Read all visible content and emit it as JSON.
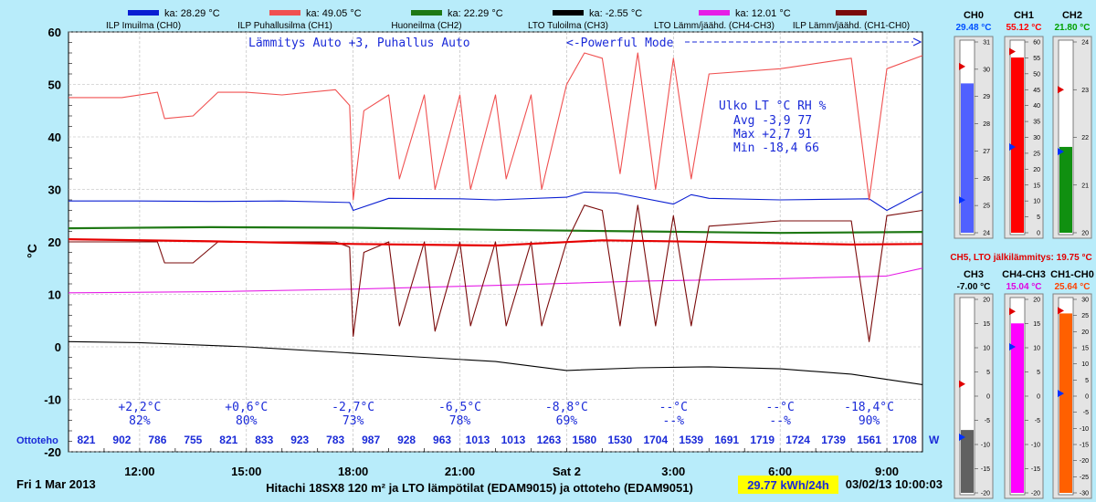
{
  "chart_data": {
    "type": "line",
    "ylabel": "°C",
    "ylim": [
      -20,
      60
    ],
    "yticks": [
      -20,
      -10,
      0,
      10,
      20,
      30,
      40,
      50,
      60
    ],
    "xlim_hours": [
      10.0,
      34.0
    ],
    "x_ticks": [
      {
        "h": 12,
        "label": "12:00"
      },
      {
        "h": 15,
        "label": "15:00"
      },
      {
        "h": 18,
        "label": "18:00"
      },
      {
        "h": 21,
        "label": "21:00"
      },
      {
        "h": 24,
        "label": "Sat 2"
      },
      {
        "h": 27,
        "label": "3:00"
      },
      {
        "h": 30,
        "label": "6:00"
      },
      {
        "h": 33,
        "label": "9:00"
      }
    ],
    "legend": [
      {
        "avg": "ka: 28.29 °C",
        "name": "ILP Imuilma (CH0)",
        "color": "#0a1ed2"
      },
      {
        "avg": "ka: 49.05 °C",
        "name": "ILP Puhallusilma (CH1)",
        "color": "#f05050"
      },
      {
        "avg": "ka: 22.29 °C",
        "name": "Huoneilma (CH2)",
        "color": "#1e7814"
      },
      {
        "avg": "ka: -2.55 °C",
        "name": "LTO Tuloilma (CH3)",
        "color": "#000000"
      },
      {
        "avg": "ka: 12.01 °C",
        "name": "LTO Lämm/jäähd. (CH4-CH3)",
        "color": "#e61ee6"
      },
      {
        "avg": "",
        "name": "ILP Lämm/jäähd. (CH1-CH0)",
        "color": "#7a0a0a"
      }
    ],
    "series": [
      {
        "name": "ILP Imuilma (CH0)",
        "color": "#0a1ed2",
        "x": [
          10,
          12,
          14,
          16,
          17.9,
          18,
          19,
          21,
          22,
          24,
          24.5,
          25.4,
          27,
          27.5,
          28,
          30,
          32.5,
          33,
          34
        ],
        "y": [
          27.8,
          27.8,
          27.7,
          27.8,
          27.5,
          26,
          28.3,
          28.2,
          28,
          28.5,
          29.5,
          29.3,
          27.2,
          29,
          28.3,
          28,
          28.2,
          26,
          29.6
        ]
      },
      {
        "name": "ILP Puhallusilma (CH1)",
        "color": "#f05050",
        "x": [
          10,
          11.5,
          12.5,
          12.7,
          13.5,
          14.2,
          15,
          16,
          17.5,
          17.9,
          18,
          18.3,
          19,
          19.3,
          20,
          20.3,
          21,
          21.3,
          22,
          22.3,
          23,
          23.3,
          24,
          24.5,
          25,
          25.5,
          26,
          26.5,
          27,
          27.5,
          28,
          30,
          32,
          32.5,
          33,
          34
        ],
        "y": [
          47.5,
          47.5,
          48.5,
          43.5,
          44,
          48.5,
          48.5,
          48,
          49,
          46,
          28,
          45,
          48,
          32,
          48,
          30,
          48,
          30,
          48,
          32,
          48,
          30,
          50,
          56,
          55,
          33,
          56,
          30,
          55,
          32,
          52,
          53,
          55,
          28,
          53,
          55.5
        ]
      },
      {
        "name": "Huoneilma (CH2)",
        "color": "#1e7814",
        "x": [
          10,
          14,
          18,
          22,
          26,
          30,
          34
        ],
        "y": [
          22.6,
          22.8,
          22.7,
          22.3,
          22,
          21.7,
          21.9
        ]
      },
      {
        "name": "LTO Tuloilma (CH3)",
        "color": "#000000",
        "x": [
          10,
          12,
          15,
          18,
          20,
          22,
          24,
          26,
          28,
          30,
          32,
          34
        ],
        "y": [
          1,
          0.8,
          0,
          -1.2,
          -2,
          -2.8,
          -4.5,
          -4,
          -3.8,
          -4.2,
          -5.2,
          -7.2
        ]
      },
      {
        "name": "LTO Lämm/jäähd. (CH4-CH3)",
        "color": "#e61ee6",
        "x": [
          10,
          14,
          18,
          22,
          26,
          30,
          33,
          34
        ],
        "y": [
          10.3,
          10.5,
          11,
          11.7,
          12.5,
          13,
          13.5,
          15
        ]
      },
      {
        "name": "ILP Lämm/jäähd. (CH1-CH0)",
        "color": "#7a0a0a",
        "x": [
          10,
          11.5,
          12.5,
          12.7,
          13.5,
          14.2,
          15,
          16,
          17.5,
          17.9,
          18,
          18.3,
          19,
          19.3,
          20,
          20.3,
          21,
          21.3,
          22,
          22.3,
          23,
          23.3,
          24,
          24.5,
          25,
          25.5,
          26,
          26.5,
          27,
          27.5,
          28,
          30,
          32,
          32.5,
          33,
          34
        ],
        "y": [
          20,
          20,
          20,
          16,
          16,
          20,
          20,
          20,
          20,
          19,
          2,
          18,
          20,
          4,
          20,
          3,
          20,
          4,
          20,
          4,
          20,
          4,
          20,
          27,
          26,
          4,
          27,
          4,
          25,
          4,
          23,
          24,
          24,
          1,
          25,
          26
        ]
      },
      {
        "name": "CH5, LTO jälkilämmitys",
        "color": "#e60000",
        "x": [
          10,
          14,
          18,
          22,
          25,
          28,
          32,
          34
        ],
        "y": [
          20.5,
          20.1,
          19.6,
          19.3,
          20.3,
          20,
          19.5,
          19.6
        ]
      }
    ],
    "annotations": {
      "mode_top": "Lämmitys Auto +3, Puhallus Auto",
      "powerful_mode": "<-Powerful Mode",
      "outdoor_header": "Ulko LT °C RH %",
      "outdoor_avg": "Avg  -3,9 77",
      "outdoor_max": "Max  +2,7 91",
      "outdoor_min": "Min -18,4 66"
    },
    "outdoor_temps": [
      {
        "h": 12,
        "t": "+2,2°C",
        "rh": "82%"
      },
      {
        "h": 15,
        "t": "+0,6°C",
        "rh": "80%"
      },
      {
        "h": 18,
        "t": "-2,7°C",
        "rh": "73%"
      },
      {
        "h": 21,
        "t": "-6,5°C",
        "rh": "78%"
      },
      {
        "h": 24,
        "t": "-8,8°C",
        "rh": "69%"
      },
      {
        "h": 27,
        "t": "--°C",
        "rh": "--%"
      },
      {
        "h": 30,
        "t": "--°C",
        "rh": "--%"
      },
      {
        "h": 32.5,
        "t": "-18,4°C",
        "rh": "90%"
      }
    ],
    "ottoteho_label": "Ottoteho",
    "ottoteho_unit": "W",
    "ottoteho_values": [
      "821",
      "902",
      "786",
      "755",
      "821",
      "833",
      "923",
      "783",
      "987",
      "928",
      "963",
      "1013",
      "1013",
      "1263",
      "1580",
      "1530",
      "1704",
      "1539",
      "1691",
      "1719",
      "1724",
      "1739",
      "1561",
      "1708"
    ],
    "footer": {
      "date_left": "Fri 1 Mar 2013",
      "title": "Hitachi 18SX8 120 m² ja LTO lämpötilat (EDAM9015) ja ottoteho (EDAM9051)",
      "energy": "29.77 kWh/24h",
      "timestamp": "03/02/13 10:00:03"
    }
  },
  "gauges": {
    "row1": [
      {
        "label": "CH0",
        "value_text": "29.48 °C",
        "value_color": "#0050ff",
        "fill": "#5060ff",
        "min": 24,
        "max": 31,
        "ticks": [
          31,
          30,
          29,
          28,
          27,
          26,
          25,
          24
        ],
        "value": 29.48,
        "max_marker": 30.1,
        "min_marker": 25.2
      },
      {
        "label": "CH1",
        "value_text": "55.12 °C",
        "value_color": "#ff0000",
        "fill": "#ff0000",
        "min": 0,
        "max": 60,
        "ticks": [
          60,
          55,
          50,
          45,
          40,
          35,
          30,
          25,
          20,
          15,
          10,
          5,
          0
        ],
        "value": 55.12,
        "max_marker": 57,
        "min_marker": 27
      },
      {
        "label": "CH2",
        "value_text": "21.80 °C",
        "value_color": "#00a000",
        "fill": "#109010",
        "min": 20,
        "max": 24,
        "ticks": [
          24,
          23,
          22,
          21,
          20
        ],
        "value": 21.8,
        "max_marker": 23,
        "min_marker": 21.7
      }
    ],
    "ch5_text": "CH5, LTO jälkilämmitys: 19.75 °C",
    "row2": [
      {
        "label": "CH3",
        "value_text": "-7.00 °C",
        "value_color": "#000000",
        "fill": "#606060",
        "min": -20,
        "max": 20,
        "ticks": [
          20,
          15,
          10,
          5,
          0,
          -5,
          -10,
          -15,
          -20
        ],
        "value": -7.0,
        "max_marker": 2.5,
        "min_marker": -8.5
      },
      {
        "label": "CH4-CH3",
        "value_text": "15.04 °C",
        "value_color": "#e000e0",
        "fill": "#ff00ff",
        "min": -20,
        "max": 20,
        "ticks": [
          20,
          15,
          10,
          5,
          0,
          -5,
          -10,
          -15,
          -20
        ],
        "value": 15.04,
        "max_marker": 17.5,
        "min_marker": 10.2
      },
      {
        "label": "CH1-CH0",
        "value_text": "25.64 °C",
        "value_color": "#ff4000",
        "fill": "#ff6000",
        "min": -30,
        "max": 30,
        "ticks": [
          30,
          25,
          20,
          15,
          10,
          5,
          0,
          -5,
          -10,
          -15,
          -20,
          -25,
          -30
        ],
        "value": 25.64,
        "max_marker": 26.5,
        "min_marker": 0.8
      }
    ]
  }
}
